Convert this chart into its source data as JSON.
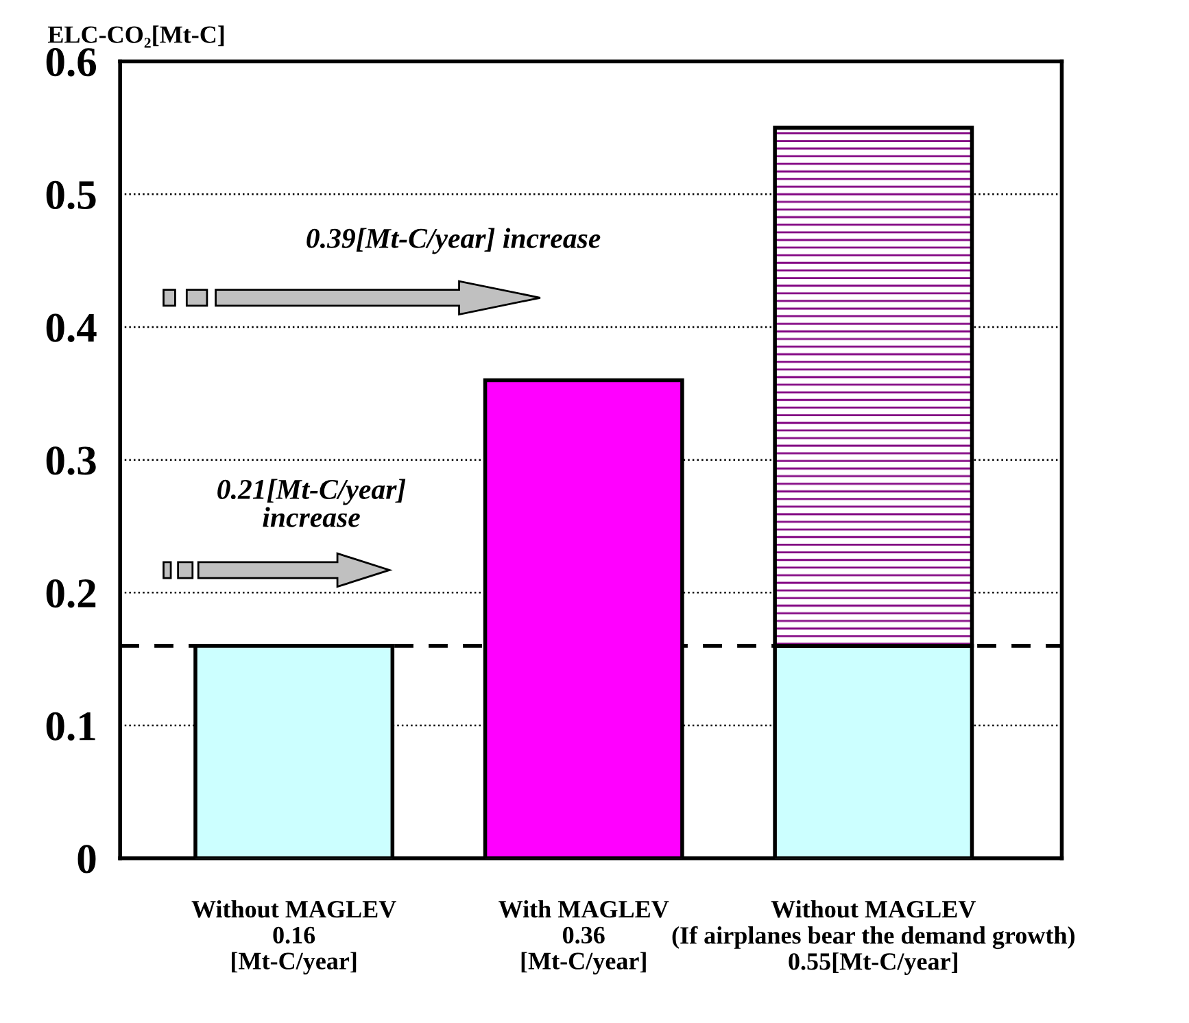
{
  "chart_data": {
    "type": "bar",
    "stacked": true,
    "ylabel": "ELC-CO₂[Mt-C]",
    "categories": [
      "Without MAGLEV\n0.16\n[Mt-C/year]",
      "With MAGLEV\n0.36\n[Mt-C/year]",
      "Without MAGLEV\n(If airplanes bear the demand growth)\n0.55[Mt-C/year]"
    ],
    "series": [
      {
        "color": "#ccffff",
        "values": [
          0.16,
          null,
          0.16
        ]
      },
      {
        "color": "#ff00ff",
        "values": [
          null,
          0.36,
          null
        ]
      },
      {
        "color": "#800080",
        "values": [
          null,
          null,
          0.39
        ]
      }
    ],
    "ylim": [
      0,
      0.6
    ],
    "yticks": [
      {
        "value": 0,
        "label": "0"
      },
      0.1,
      0.2,
      0.3,
      0.4,
      0.5,
      0.6
    ],
    "grid": "y",
    "legend": false,
    "ref_lines": [
      {
        "axis": "y",
        "value": 0.16,
        "line_style": "dashed",
        "color": "#000000"
      }
    ],
    "annotations": [
      "0.39[Mt-C/year] increase",
      "0.21[Mt-C/year]\nincrease"
    ]
  }
}
